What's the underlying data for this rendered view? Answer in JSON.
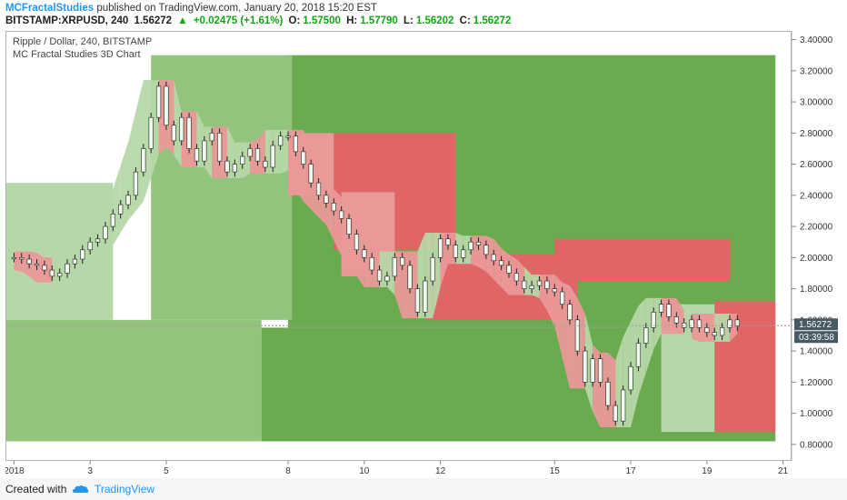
{
  "header": {
    "author": "MCFractalStudies",
    "published": "published on TradingView.com, January 20, 2018 15:20 EST",
    "symbol": "BITSTAMP:XRPUSD, 240",
    "last": "1.56272",
    "change": "+0.02475 (+1.61%)",
    "o_label": "O:",
    "o_value": "1.57500",
    "h_label": "H:",
    "h_value": "1.57790",
    "l_label": "L:",
    "l_value": "1.56202",
    "c_label": "C:",
    "c_value": "1.56272",
    "change_icon": "triangle-up-icon"
  },
  "legend": {
    "line1": "Ripple / Dollar, 240, BITSTAMP",
    "line2": "MC Fractal Studies 3D Chart"
  },
  "price_tag": {
    "price": "1.56272",
    "countdown": "03:39:58"
  },
  "footer": {
    "created": "Created with",
    "brand": "TradingView",
    "icon": "tradingview-cloud-icon"
  },
  "colors": {
    "green_dark": "#6aab4f",
    "green_mid": "#93c47d",
    "green_light": "#b6d7a8",
    "red_dark": "#e06666",
    "red_light": "#ea9999",
    "candle_body": "#eef8ee",
    "tag_bg": "#455a64"
  },
  "chart_data": {
    "type": "line",
    "title": "Ripple / Dollar, 240, BITSTAMP",
    "subtitle": "MC Fractal Studies 3D Chart",
    "xlabel": "",
    "ylabel": "",
    "ylim": [
      0.7,
      3.45
    ],
    "xlim": [
      0,
      103
    ],
    "y_ticks": [
      "0.80000",
      "1.00000",
      "1.20000",
      "1.40000",
      "1.60000",
      "1.80000",
      "2.00000",
      "2.20000",
      "2.40000",
      "2.60000",
      "2.80000",
      "3.00000",
      "3.20000",
      "3.40000"
    ],
    "y_tick_values": [
      0.8,
      1.0,
      1.2,
      1.4,
      1.6,
      1.8,
      2.0,
      2.2,
      2.4,
      2.6,
      2.8,
      3.0,
      3.2,
      3.4
    ],
    "x_ticks": [
      "2018",
      "3",
      "5",
      "8",
      "10",
      "12",
      "15",
      "17",
      "19",
      "21"
    ],
    "x_tick_positions": [
      1,
      11,
      21,
      37,
      47,
      57,
      72,
      82,
      92,
      102
    ],
    "grid": false,
    "last_price": 1.56272,
    "series": [
      {
        "values": [
          2.0,
          1.99,
          1.96,
          1.95,
          1.92,
          1.88,
          1.9,
          1.96,
          1.99,
          2.05,
          2.1,
          2.12,
          2.2,
          2.28,
          2.34,
          2.4,
          2.55,
          2.7,
          2.9,
          3.1,
          2.85,
          2.75,
          2.9,
          2.7,
          2.62,
          2.75,
          2.8,
          2.62,
          2.55,
          2.6,
          2.65,
          2.7,
          2.62,
          2.58,
          2.72,
          2.78,
          2.78,
          2.68,
          2.6,
          2.48,
          2.4,
          2.35,
          2.3,
          2.25,
          2.15,
          2.05,
          2.0,
          1.92,
          1.85,
          1.88,
          2.0,
          1.95,
          1.8,
          1.65,
          1.85,
          2.0,
          2.12,
          2.08,
          2.0,
          2.05,
          2.1,
          2.08,
          2.02,
          1.98,
          1.95,
          1.9,
          1.85,
          1.8,
          1.82,
          1.85,
          1.8,
          1.78,
          1.7,
          1.6,
          1.4,
          1.2,
          1.35,
          1.2,
          1.05,
          0.95,
          1.15,
          1.3,
          1.45,
          1.55,
          1.65,
          1.7,
          1.62,
          1.58,
          1.55,
          1.6,
          1.55,
          1.52,
          1.5,
          1.55,
          1.6,
          1.56
        ]
      }
    ]
  }
}
